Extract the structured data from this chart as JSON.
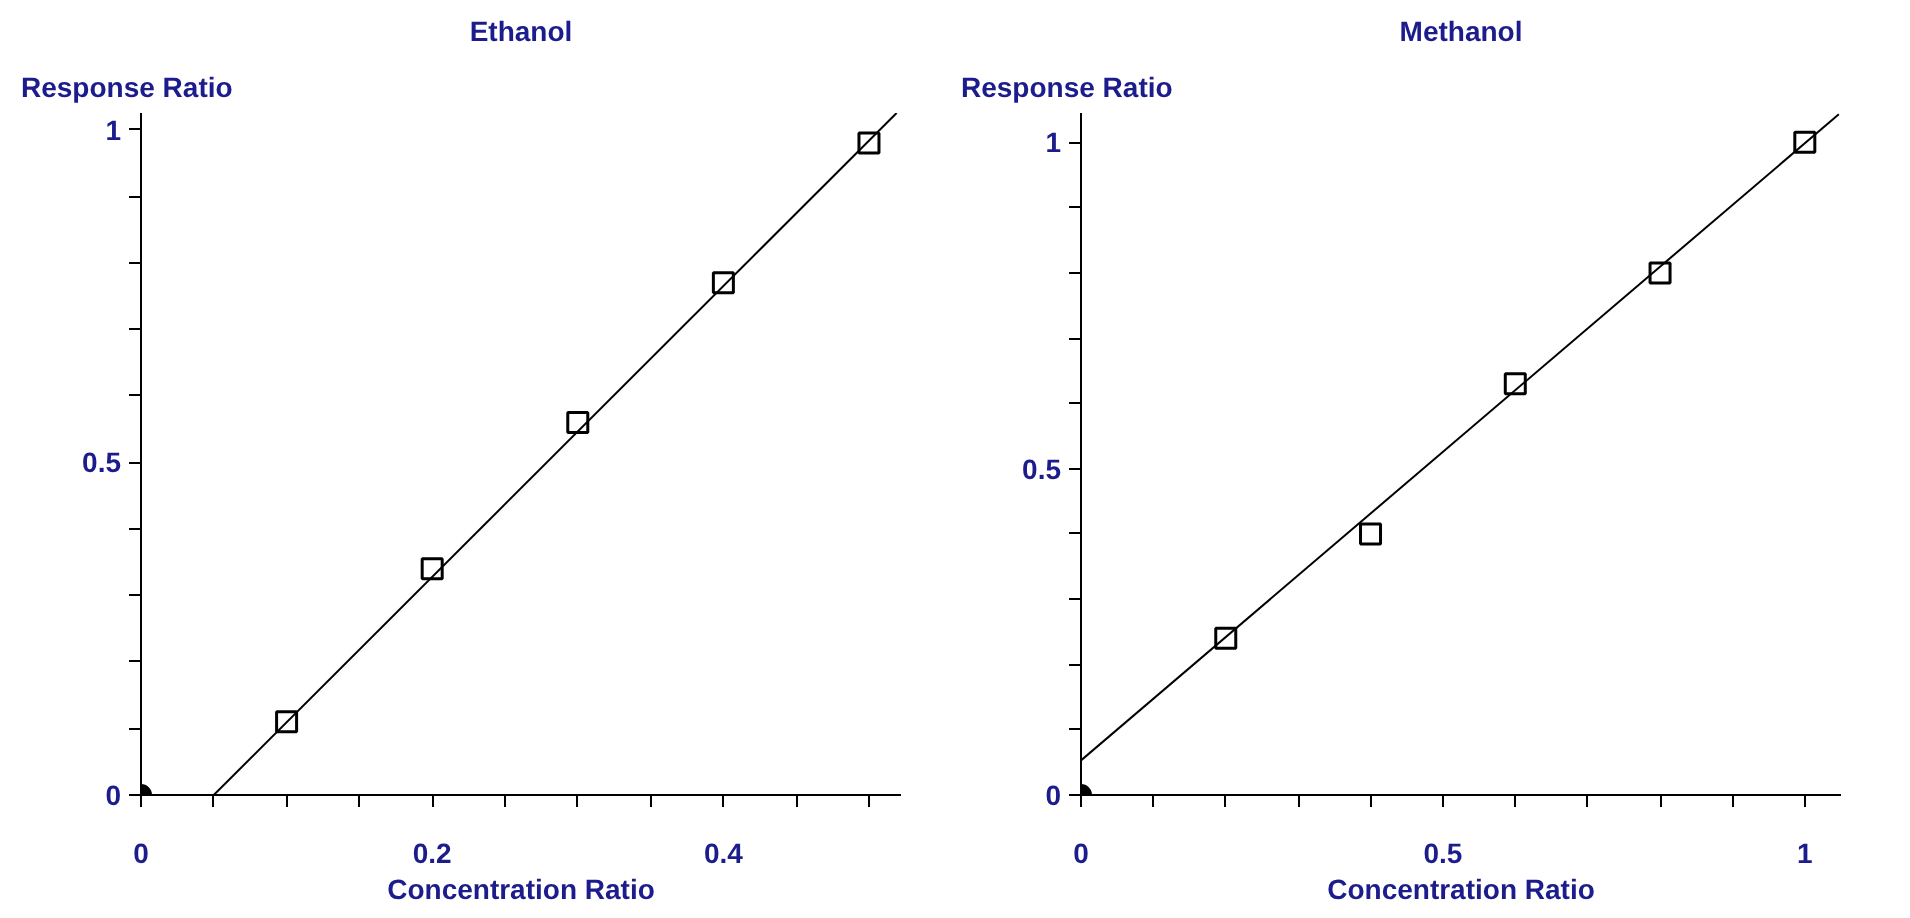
{
  "chart_data": [
    {
      "type": "scatter",
      "title": "Ethanol",
      "xlabel": "Concentration Ratio",
      "ylabel": "Response Ratio",
      "xlim": [
        0,
        0.522
      ],
      "ylim": [
        0,
        1.025
      ],
      "grid": false,
      "xticks": [
        0,
        {
          "value": 0.05,
          "label": null
        },
        {
          "value": 0.1,
          "label": null
        },
        {
          "value": 0.15,
          "label": null
        },
        0.2,
        {
          "value": 0.25,
          "label": null
        },
        {
          "value": 0.3,
          "label": null
        },
        {
          "value": 0.35,
          "label": null
        },
        0.4,
        {
          "value": 0.45,
          "label": null
        },
        {
          "value": 0.5,
          "label": null
        }
      ],
      "yticks": [
        0,
        {
          "value": 0.1,
          "label": null
        },
        {
          "value": 0.2,
          "label": null
        },
        {
          "value": 0.3,
          "label": null
        },
        {
          "value": 0.4,
          "label": null
        },
        0.5,
        {
          "value": 0.6,
          "label": null
        },
        {
          "value": 0.7,
          "label": null
        },
        {
          "value": 0.8,
          "label": null
        },
        {
          "value": 0.9,
          "label": null
        },
        1
      ],
      "series": [
        {
          "type": "line",
          "color": "#000000",
          "x": [
            0.05,
            0.519
          ],
          "values": [
            0,
            1.025
          ],
          "line_style": "solid"
        },
        {
          "color": "#000000",
          "marker": "square",
          "x": [
            0.1,
            0.2,
            0.3,
            0.4,
            0.5
          ],
          "values": [
            0.11,
            0.34,
            0.56,
            0.77,
            0.98
          ]
        },
        {
          "color": "#000000",
          "marker": "circle",
          "x": [
            0
          ],
          "values": [
            0
          ]
        }
      ]
    },
    {
      "type": "scatter",
      "title": "Methanol",
      "xlabel": "Concentration Ratio",
      "ylabel": "Response Ratio",
      "xlim": [
        0,
        1.05
      ],
      "ylim": [
        0,
        1.045
      ],
      "grid": false,
      "xticks": [
        0,
        {
          "value": 0.1,
          "label": null
        },
        {
          "value": 0.2,
          "label": null
        },
        {
          "value": 0.3,
          "label": null
        },
        {
          "value": 0.4,
          "label": null
        },
        0.5,
        {
          "value": 0.6,
          "label": null
        },
        {
          "value": 0.7,
          "label": null
        },
        {
          "value": 0.8,
          "label": null
        },
        {
          "value": 0.9,
          "label": null
        },
        1
      ],
      "yticks": [
        0,
        {
          "value": 0.1,
          "label": null
        },
        {
          "value": 0.2,
          "label": null
        },
        {
          "value": 0.3,
          "label": null
        },
        {
          "value": 0.4,
          "label": null
        },
        0.5,
        {
          "value": 0.6,
          "label": null
        },
        {
          "value": 0.7,
          "label": null
        },
        {
          "value": 0.8,
          "label": null
        },
        {
          "value": 0.9,
          "label": null
        },
        1
      ],
      "series": [
        {
          "type": "line",
          "color": "#000000",
          "x": [
            0,
            1.047
          ],
          "values": [
            0.053,
            1.043
          ],
          "line_style": "solid"
        },
        {
          "color": "#000000",
          "marker": "square",
          "x": [
            0.2,
            0.4,
            0.6,
            0.8,
            1.0
          ],
          "values": [
            0.24,
            0.4,
            0.63,
            0.8,
            1.0
          ]
        },
        {
          "color": "#000000",
          "marker": "circle",
          "x": [
            0
          ],
          "values": [
            0
          ]
        }
      ]
    }
  ]
}
